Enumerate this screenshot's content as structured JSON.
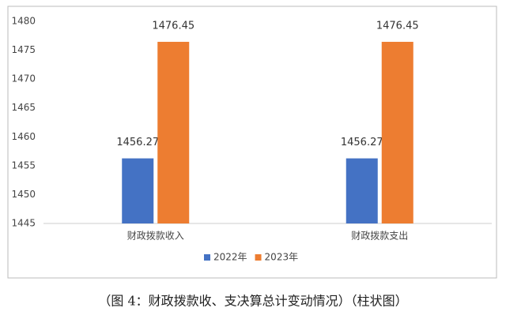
{
  "chart_data": {
    "type": "bar",
    "categories": [
      "财政拨款收入",
      "财政拨款支出"
    ],
    "series": [
      {
        "name": "2022年",
        "color": "#4472c4",
        "values": [
          1456.27,
          1456.27
        ]
      },
      {
        "name": "2023年",
        "color": "#ed7d31",
        "values": [
          1476.45,
          1476.45
        ]
      }
    ],
    "ylim": [
      1445,
      1480
    ],
    "yticks": [
      1445,
      1450,
      1455,
      1460,
      1465,
      1470,
      1475,
      1480
    ],
    "grid": false,
    "legend": "bottom",
    "caption": "（图 4：财政拨款收、支决算总计变动情况）（柱状图）"
  }
}
